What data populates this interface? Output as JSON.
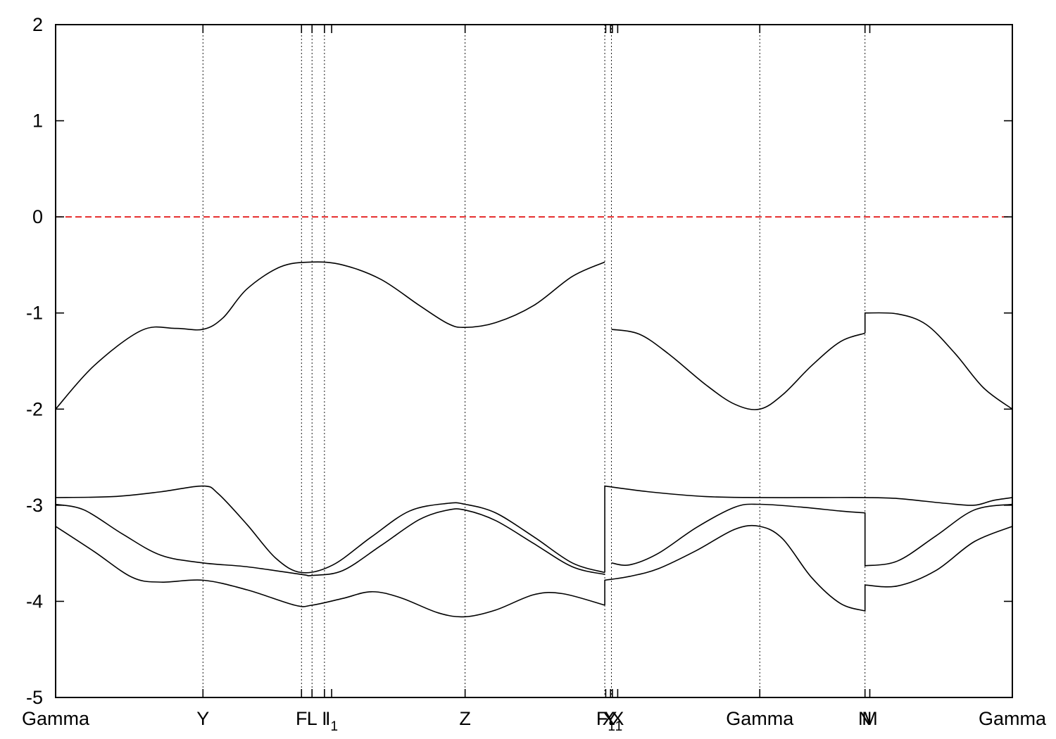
{
  "chart_data": {
    "type": "line",
    "title": "",
    "xlabel": "",
    "ylabel": "",
    "ylim": [
      -5,
      2
    ],
    "xlim": [
      0,
      1
    ],
    "yticks": [
      2,
      1,
      0,
      -1,
      -2,
      -3,
      -4,
      -5
    ],
    "grid": false,
    "legend": "none",
    "kpoints": [
      {
        "label": "Gamma",
        "sub": "",
        "x": 0.0
      },
      {
        "label": "Y",
        "sub": "",
        "x": 0.154
      },
      {
        "label": "F",
        "sub": "",
        "x": 0.257
      },
      {
        "label": "L",
        "sub": "",
        "x": 0.268
      },
      {
        "label": "I",
        "sub": "",
        "x": 0.281
      },
      {
        "label": "I",
        "sub": "1",
        "x": 0.2885
      },
      {
        "label": "Z",
        "sub": "",
        "x": 0.428
      },
      {
        "label": "F",
        "sub": "1",
        "x": 0.575
      },
      {
        "label": "Y",
        "sub": "",
        "x": 0.58
      },
      {
        "label": "X",
        "sub": "1",
        "x": 0.582
      },
      {
        "label": "X",
        "sub": "",
        "x": 0.5875
      },
      {
        "label": "Gamma",
        "sub": "",
        "x": 0.736
      },
      {
        "label": "N",
        "sub": "",
        "x": 0.846
      },
      {
        "label": "M",
        "sub": "",
        "x": 0.851
      },
      {
        "label": "Gamma",
        "sub": "",
        "x": 1.0
      }
    ],
    "kline_x": [
      0.154,
      0.257,
      0.268,
      0.281,
      0.428,
      0.574,
      0.581,
      0.736,
      0.846
    ],
    "fermi_level": 0.0,
    "colors": {
      "bands": "#000000",
      "fermi": "#e00000",
      "kpath_lines": "#000000"
    },
    "series": [
      {
        "points": [
          [
            0,
            -2.0
          ],
          [
            0.04,
            -1.55
          ],
          [
            0.09,
            -1.18
          ],
          [
            0.125,
            -1.16
          ],
          [
            0.154,
            -1.17
          ],
          [
            0.175,
            -1.05
          ],
          [
            0.2,
            -0.75
          ],
          [
            0.235,
            -0.52
          ],
          [
            0.268,
            -0.47
          ],
          [
            0.3,
            -0.5
          ],
          [
            0.34,
            -0.65
          ],
          [
            0.38,
            -0.92
          ],
          [
            0.41,
            -1.11
          ],
          [
            0.428,
            -1.15
          ],
          [
            0.46,
            -1.1
          ],
          [
            0.5,
            -0.92
          ],
          [
            0.54,
            -0.62
          ],
          [
            0.574,
            -0.47
          ]
        ]
      },
      {
        "points": [
          [
            0.581,
            -1.17
          ],
          [
            0.61,
            -1.22
          ],
          [
            0.64,
            -1.42
          ],
          [
            0.68,
            -1.75
          ],
          [
            0.71,
            -1.95
          ],
          [
            0.736,
            -2.0
          ],
          [
            0.76,
            -1.85
          ],
          [
            0.79,
            -1.55
          ],
          [
            0.82,
            -1.3
          ],
          [
            0.846,
            -1.21
          ]
        ]
      },
      {
        "points": [
          [
            0.846,
            -1.21
          ],
          [
            0.846,
            -1.0
          ],
          [
            0.88,
            -1.01
          ],
          [
            0.91,
            -1.12
          ],
          [
            0.94,
            -1.42
          ],
          [
            0.97,
            -1.78
          ],
          [
            1.0,
            -2.0
          ]
        ]
      },
      {
        "points": [
          [
            0,
            -2.92
          ],
          [
            0.06,
            -2.91
          ],
          [
            0.11,
            -2.86
          ],
          [
            0.154,
            -2.8
          ],
          [
            0.17,
            -2.88
          ],
          [
            0.2,
            -3.2
          ],
          [
            0.23,
            -3.55
          ],
          [
            0.257,
            -3.7
          ],
          [
            0.29,
            -3.62
          ],
          [
            0.33,
            -3.33
          ],
          [
            0.37,
            -3.06
          ],
          [
            0.41,
            -2.98
          ],
          [
            0.428,
            -2.99
          ],
          [
            0.46,
            -3.08
          ],
          [
            0.5,
            -3.33
          ],
          [
            0.54,
            -3.6
          ],
          [
            0.574,
            -3.7
          ]
        ]
      },
      {
        "points": [
          [
            0.574,
            -3.7
          ],
          [
            0.574,
            -2.8
          ],
          [
            0.62,
            -2.86
          ],
          [
            0.68,
            -2.91
          ],
          [
            0.736,
            -2.92
          ],
          [
            0.8,
            -2.92
          ],
          [
            0.846,
            -2.92
          ],
          [
            0.88,
            -2.93
          ],
          [
            0.93,
            -2.98
          ],
          [
            0.96,
            -3.0
          ],
          [
            0.98,
            -2.95
          ],
          [
            1.0,
            -2.92
          ]
        ]
      },
      {
        "points": [
          [
            0,
            -2.99
          ],
          [
            0.03,
            -3.05
          ],
          [
            0.07,
            -3.3
          ],
          [
            0.11,
            -3.52
          ],
          [
            0.154,
            -3.6
          ],
          [
            0.2,
            -3.64
          ],
          [
            0.257,
            -3.72
          ],
          [
            0.268,
            -3.73
          ],
          [
            0.3,
            -3.68
          ],
          [
            0.34,
            -3.42
          ],
          [
            0.38,
            -3.15
          ],
          [
            0.41,
            -3.05
          ],
          [
            0.428,
            -3.05
          ],
          [
            0.46,
            -3.16
          ],
          [
            0.5,
            -3.4
          ],
          [
            0.54,
            -3.64
          ],
          [
            0.574,
            -3.72
          ]
        ]
      },
      {
        "points": [
          [
            0.581,
            -3.6
          ],
          [
            0.6,
            -3.62
          ],
          [
            0.63,
            -3.5
          ],
          [
            0.67,
            -3.23
          ],
          [
            0.71,
            -3.02
          ],
          [
            0.736,
            -2.99
          ],
          [
            0.78,
            -3.02
          ],
          [
            0.82,
            -3.06
          ],
          [
            0.846,
            -3.08
          ],
          [
            0.846,
            -3.63
          ],
          [
            0.88,
            -3.58
          ],
          [
            0.92,
            -3.32
          ],
          [
            0.96,
            -3.05
          ],
          [
            1.0,
            -2.99
          ]
        ]
      },
      {
        "points": [
          [
            0,
            -3.22
          ],
          [
            0.04,
            -3.48
          ],
          [
            0.08,
            -3.75
          ],
          [
            0.11,
            -3.8
          ],
          [
            0.154,
            -3.78
          ],
          [
            0.2,
            -3.88
          ],
          [
            0.25,
            -4.04
          ],
          [
            0.268,
            -4.04
          ],
          [
            0.3,
            -3.97
          ],
          [
            0.33,
            -3.9
          ],
          [
            0.36,
            -3.96
          ],
          [
            0.4,
            -4.12
          ],
          [
            0.428,
            -4.16
          ],
          [
            0.46,
            -4.09
          ],
          [
            0.5,
            -3.93
          ],
          [
            0.53,
            -3.92
          ],
          [
            0.574,
            -4.04
          ]
        ]
      },
      {
        "points": [
          [
            0.574,
            -4.04
          ],
          [
            0.574,
            -3.78
          ],
          [
            0.6,
            -3.74
          ],
          [
            0.63,
            -3.66
          ],
          [
            0.67,
            -3.47
          ],
          [
            0.71,
            -3.25
          ],
          [
            0.736,
            -3.22
          ],
          [
            0.76,
            -3.35
          ],
          [
            0.79,
            -3.75
          ],
          [
            0.82,
            -4.02
          ],
          [
            0.846,
            -4.1
          ],
          [
            0.846,
            -3.83
          ],
          [
            0.88,
            -3.84
          ],
          [
            0.92,
            -3.68
          ],
          [
            0.96,
            -3.38
          ],
          [
            1.0,
            -3.22
          ]
        ]
      }
    ]
  }
}
